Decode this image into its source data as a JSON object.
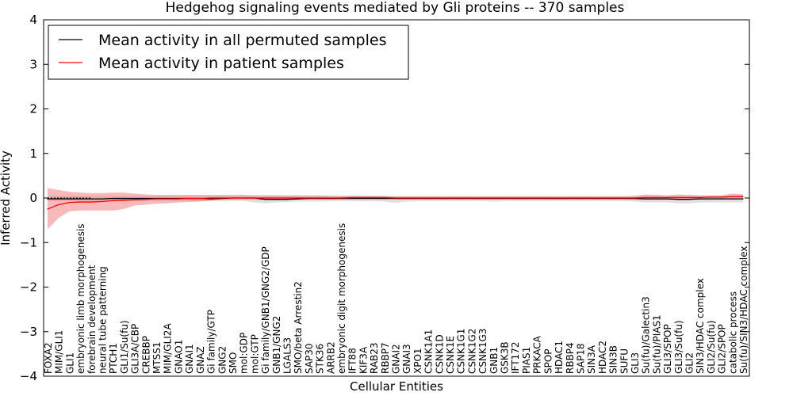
{
  "chart_data": {
    "type": "line",
    "title": "Hedgehog signaling events mediated by Gli proteins -- 370 samples",
    "xlabel": "Cellular Entities",
    "ylabel": "Inferred Activity",
    "ylim": [
      -4,
      4
    ],
    "yticks": [
      -4,
      -3,
      -2,
      -1,
      0,
      1,
      2,
      3,
      4
    ],
    "ytick_labels": [
      "−4",
      "−3",
      "−2",
      "−1",
      "0",
      "1",
      "2",
      "3",
      "4"
    ],
    "grid": false,
    "legend_position": "top-left",
    "categories": [
      "FOXA2",
      "MIM/GLI1",
      "GLI1",
      "embryonic limb morphogenesis",
      "forebrain development",
      "neural tube patterning",
      "PTCH1",
      "GLI1/Su(fu)",
      "GLI3A/CBP",
      "CREBBP",
      "MTSS1",
      "MIM/GLI2A",
      "GNAO1",
      "GNAI1",
      "GNAZ",
      "Gi family/GTP",
      "GNG2",
      "SMO",
      "mol:GDP",
      "mol:GTP",
      "Gi family/GNB1/GNG2/GDP",
      "GNB1/GNG2",
      "LGALS3",
      "SMO/beta Arrestin2",
      "SAP30",
      "STK36",
      "ARRB2",
      "embryonic digit morphogenesis",
      "IFT88",
      "KIF3A",
      "RAB23",
      "RBBP7",
      "GNAI2",
      "GNAI3",
      "XPO1",
      "CSNK1A1",
      "CSNK1D",
      "CSNK1E",
      "CSNK1G1",
      "CSNK1G2",
      "CSNK1G3",
      "GNB1",
      "GSK3B",
      "IFT172",
      "PIAS1",
      "PRKACA",
      "SPOP",
      "HDAC1",
      "RBBP4",
      "SAP18",
      "SIN3A",
      "HDAC2",
      "SIN3B",
      "SUFU",
      "GLI3",
      "Su(fu)/Galectin3",
      "Su(fu)/PIAS1",
      "GLI3/SPOP",
      "GLI3/Su(fu)",
      "GLI2",
      "SIN3/HDAC complex",
      "GLI2/Su(fu)",
      "GLI2/SPOP",
      "catabolic process",
      "Su(fu)/SIN3/HDAC complex"
    ],
    "series": [
      {
        "name": "Mean activity in all permuted samples",
        "color": "#000000",
        "band_color": "#bbbbbb",
        "values": [
          -0.02,
          -0.02,
          -0.02,
          -0.02,
          -0.02,
          -0.02,
          -0.01,
          -0.01,
          -0.01,
          -0.01,
          -0.01,
          -0.01,
          -0.01,
          -0.01,
          -0.01,
          -0.02,
          -0.01,
          0.0,
          0.0,
          0.0,
          -0.03,
          -0.03,
          -0.03,
          -0.02,
          -0.01,
          -0.01,
          -0.01,
          -0.01,
          -0.01,
          -0.01,
          -0.01,
          -0.01,
          -0.01,
          -0.01,
          -0.01,
          -0.01,
          -0.01,
          -0.01,
          -0.01,
          -0.01,
          -0.01,
          -0.01,
          -0.01,
          -0.01,
          -0.01,
          -0.01,
          -0.01,
          -0.01,
          -0.01,
          -0.01,
          -0.01,
          -0.01,
          -0.01,
          -0.01,
          -0.01,
          -0.02,
          -0.02,
          -0.02,
          -0.03,
          -0.03,
          -0.02,
          -0.02,
          -0.02,
          -0.02,
          -0.02
        ],
        "upper": [
          0.05,
          0.05,
          0.05,
          0.05,
          0.05,
          0.05,
          0.05,
          0.05,
          0.05,
          0.05,
          0.05,
          0.05,
          0.05,
          0.05,
          0.05,
          0.05,
          0.06,
          0.07,
          0.08,
          0.06,
          0.06,
          0.06,
          0.05,
          0.05,
          0.05,
          0.05,
          0.05,
          0.05,
          0.05,
          0.04,
          0.04,
          0.04,
          0.04,
          0.04,
          0.04,
          0.04,
          0.04,
          0.04,
          0.04,
          0.04,
          0.04,
          0.04,
          0.04,
          0.04,
          0.04,
          0.04,
          0.04,
          0.04,
          0.04,
          0.04,
          0.04,
          0.04,
          0.04,
          0.04,
          0.04,
          0.05,
          0.05,
          0.05,
          0.05,
          0.05,
          0.05,
          0.05,
          0.05,
          0.05,
          0.05
        ],
        "lower": [
          -0.07,
          -0.07,
          -0.07,
          -0.07,
          -0.07,
          -0.07,
          -0.07,
          -0.07,
          -0.07,
          -0.07,
          -0.07,
          -0.07,
          -0.07,
          -0.07,
          -0.07,
          -0.07,
          -0.06,
          -0.06,
          -0.06,
          -0.1,
          -0.12,
          -0.1,
          -0.09,
          -0.08,
          -0.08,
          -0.08,
          -0.07,
          -0.07,
          -0.07,
          -0.07,
          -0.07,
          -0.08,
          -0.11,
          -0.08,
          -0.07,
          -0.07,
          -0.07,
          -0.07,
          -0.07,
          -0.07,
          -0.07,
          -0.08,
          -0.07,
          -0.07,
          -0.07,
          -0.07,
          -0.07,
          -0.07,
          -0.07,
          -0.07,
          -0.07,
          -0.07,
          -0.07,
          -0.07,
          -0.08,
          -0.1,
          -0.1,
          -0.1,
          -0.12,
          -0.12,
          -0.1,
          -0.1,
          -0.1,
          -0.1,
          -0.1
        ]
      },
      {
        "name": "Mean activity in patient samples",
        "color": "#ff0000",
        "band_color": "#f08080",
        "values": [
          -0.25,
          -0.15,
          -0.1,
          -0.09,
          -0.09,
          -0.08,
          -0.06,
          -0.05,
          -0.04,
          -0.03,
          -0.02,
          -0.02,
          -0.02,
          -0.01,
          -0.01,
          0.0,
          0.0,
          0.0,
          0.0,
          0.0,
          0.0,
          0.0,
          0.0,
          0.0,
          0.0,
          0.0,
          0.0,
          0.0,
          0.01,
          0.01,
          0.01,
          0.01,
          0.0,
          0.0,
          0.0,
          0.0,
          0.0,
          0.0,
          0.0,
          0.0,
          0.0,
          0.0,
          0.0,
          0.0,
          0.0,
          0.0,
          0.0,
          0.0,
          0.0,
          0.0,
          0.0,
          0.0,
          0.0,
          0.0,
          0.0,
          0.01,
          0.01,
          0.01,
          0.01,
          0.01,
          0.01,
          0.02,
          0.02,
          0.03,
          0.03
        ],
        "upper": [
          0.22,
          0.18,
          0.14,
          0.12,
          0.11,
          0.11,
          0.12,
          0.12,
          0.1,
          0.08,
          0.07,
          0.07,
          0.07,
          0.07,
          0.07,
          0.07,
          0.07,
          0.06,
          0.06,
          0.06,
          0.06,
          0.06,
          0.06,
          0.06,
          0.06,
          0.06,
          0.05,
          0.05,
          0.05,
          0.05,
          0.05,
          0.05,
          0.04,
          0.04,
          0.04,
          0.04,
          0.04,
          0.04,
          0.04,
          0.04,
          0.04,
          0.04,
          0.04,
          0.04,
          0.04,
          0.04,
          0.04,
          0.04,
          0.04,
          0.04,
          0.04,
          0.04,
          0.04,
          0.04,
          0.05,
          0.08,
          0.07,
          0.06,
          0.08,
          0.07,
          0.06,
          0.06,
          0.06,
          0.1,
          0.09
        ],
        "lower": [
          -0.7,
          -0.45,
          -0.3,
          -0.28,
          -0.28,
          -0.28,
          -0.28,
          -0.25,
          -0.17,
          -0.15,
          -0.13,
          -0.12,
          -0.1,
          -0.09,
          -0.08,
          -0.06,
          -0.05,
          -0.05,
          -0.04,
          -0.04,
          -0.04,
          -0.04,
          -0.04,
          -0.04,
          -0.03,
          -0.03,
          -0.03,
          -0.03,
          -0.02,
          -0.02,
          -0.02,
          -0.02,
          -0.03,
          -0.03,
          -0.03,
          -0.03,
          -0.03,
          -0.03,
          -0.03,
          -0.03,
          -0.03,
          -0.03,
          -0.03,
          -0.03,
          -0.03,
          -0.03,
          -0.03,
          -0.03,
          -0.03,
          -0.03,
          -0.03,
          -0.03,
          -0.03,
          -0.03,
          -0.04,
          -0.04,
          -0.04,
          -0.04,
          -0.04,
          -0.04,
          -0.03,
          -0.03,
          -0.03,
          -0.02,
          -0.02
        ]
      }
    ]
  }
}
